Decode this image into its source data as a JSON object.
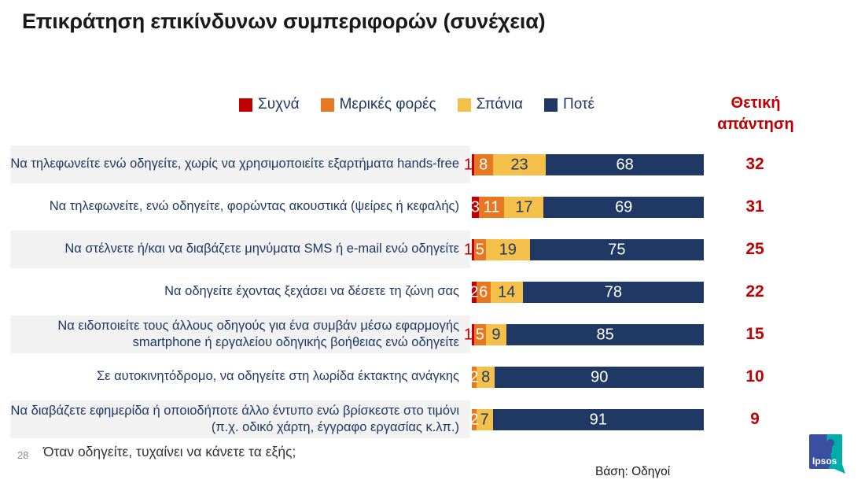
{
  "slide": {
    "title": "Επικράτηση επικίνδυνων συμπεριφορών (συνέχεια)",
    "page_number": "28",
    "footer_question": "Όταν οδηγείτε, τυχαίνει να κάνετε τα εξής;",
    "base_note": "Βάση: Οδηγοί",
    "logo_text": "Ipsos"
  },
  "chart_data": {
    "type": "bar",
    "orientation": "horizontal",
    "stacked": true,
    "xlim": [
      0,
      100
    ],
    "grid": false,
    "legend_position": "top-center",
    "positive_header": "Θετική απάντηση",
    "legend": [
      {
        "label": "Συχνά",
        "color": "#C00000"
      },
      {
        "label": "Μερικές φορές",
        "color": "#E87722"
      },
      {
        "label": "Σπάνια",
        "color": "#F5C04A"
      },
      {
        "label": "Ποτέ",
        "color": "#1F3864"
      }
    ],
    "categories": [
      "Να τηλεφωνείτε ενώ οδηγείτε, χωρίς να χρησιμοποιείτε εξαρτήματα hands-free",
      "Να τηλεφωνείτε, ενώ οδηγείτε, φορώντας ακουστικά (ψείρες ή κεφαλής)",
      "Να στέλνετε ή/και να διαβάζετε μηνύματα SMS ή e-mail ενώ οδηγείτε",
      "Να οδηγείτε έχοντας ξεχάσει να δέσετε τη ζώνη σας",
      "Να ειδοποιείτε τους άλλους οδηγούς για ένα συμβάν μέσω εφαρμογής smartphone ή εργαλείου οδηγικής βοήθειας ενώ οδηγείτε",
      "Σε αυτοκινητόδρομο, να οδηγείτε στη λωρίδα έκτακτης ανάγκης",
      "Να διαβάζετε εφημερίδα ή οποιοδήποτε άλλο έντυπο ενώ βρίσκεστε στο τιμόνι (π.χ. οδικό χάρτη, έγγραφο εργασίας κ.λπ.)"
    ],
    "series": [
      {
        "name": "Συχνά",
        "values": [
          1,
          3,
          1,
          2,
          1,
          0,
          0
        ]
      },
      {
        "name": "Μερικές φορές",
        "values": [
          8,
          11,
          5,
          6,
          5,
          2,
          2
        ]
      },
      {
        "name": "Σπάνια",
        "values": [
          23,
          17,
          19,
          14,
          9,
          8,
          7
        ]
      },
      {
        "name": "Ποτέ",
        "values": [
          68,
          69,
          75,
          78,
          85,
          90,
          91
        ]
      }
    ],
    "positive_values": [
      32,
      31,
      25,
      22,
      15,
      10,
      9
    ],
    "colors": {
      "positive_text": "#C00000",
      "category_text": "#1F3864",
      "row_alt_background": "#F2F2F2",
      "label_on_dark": "#FFFFFF",
      "label_on_yellow": "#1F3864"
    }
  }
}
